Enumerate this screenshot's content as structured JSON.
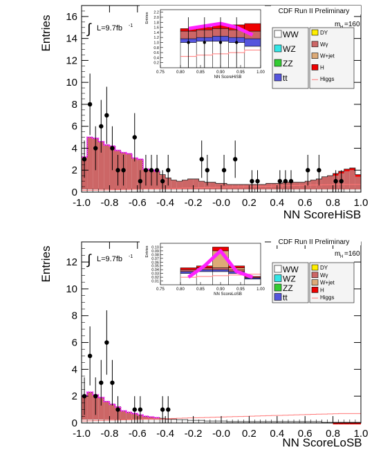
{
  "colors": {
    "WW": "#ffffff",
    "WZ": "#33e6e6",
    "ZZ": "#33cc33",
    "ttbar": "#5555dd",
    "DY": "#ffee00",
    "Wgamma": "#cc6666",
    "Wjet": "#ddaa77",
    "H": "#ee0000",
    "Higgs": "#ff7777",
    "band": "#ff22ff",
    "data": "#000000"
  },
  "chart_data": [
    {
      "type": "histogram",
      "id": "top",
      "run_label": "CDF Run II Preliminary",
      "lumi_label": "L=9.7fb",
      "lumi_sup": "-1",
      "mass_label": "m",
      "mass_sub": "H",
      "mass_value": "=160",
      "xlabel": "NN ScoreHiSB",
      "ylabel": "Entries",
      "xlim": [
        -1.0,
        1.0
      ],
      "ylim": [
        0,
        17
      ],
      "xticks": [
        -1.0,
        -0.8,
        -0.6,
        -0.4,
        -0.2,
        -0.0,
        0.2,
        0.4,
        0.6,
        0.8,
        1.0
      ],
      "xtick_labels": [
        "-1.0",
        "-0.8",
        "-0.6",
        "-0.4",
        "-0.2",
        "-0.0",
        "0.2",
        "0.4",
        "0.6",
        "0.8",
        "1.0"
      ],
      "yticks": [
        0,
        2,
        4,
        6,
        8,
        10,
        12,
        14,
        16
      ],
      "bin_edges": [
        -1.0,
        -0.96,
        -0.92,
        -0.88,
        -0.84,
        -0.8,
        -0.76,
        -0.72,
        -0.68,
        -0.64,
        -0.6,
        -0.56,
        -0.52,
        -0.48,
        -0.44,
        -0.4,
        -0.36,
        -0.32,
        -0.28,
        -0.24,
        -0.2,
        -0.16,
        -0.12,
        -0.08,
        -0.04,
        0.0,
        0.04,
        0.08,
        0.12,
        0.16,
        0.2,
        0.24,
        0.28,
        0.32,
        0.36,
        0.4,
        0.44,
        0.48,
        0.52,
        0.56,
        0.6,
        0.64,
        0.68,
        0.72,
        0.76,
        0.8,
        0.84,
        0.88,
        0.92,
        0.96,
        1.0
      ],
      "stack_total": [
        3.2,
        5.0,
        4.9,
        4.6,
        4.3,
        4.2,
        3.8,
        3.6,
        3.5,
        3.1,
        3.0,
        2.1,
        2.0,
        1.9,
        1.6,
        1.3,
        1.1,
        1.0,
        1.1,
        1.2,
        1.2,
        1.0,
        0.9,
        0.9,
        0.8,
        0.8,
        0.7,
        0.7,
        0.7,
        0.7,
        0.7,
        0.7,
        0.7,
        0.8,
        0.8,
        0.8,
        0.9,
        0.9,
        0.9,
        0.9,
        1.0,
        1.1,
        1.2,
        1.4,
        1.5,
        1.7,
        1.9,
        2.1,
        2.2,
        1.6
      ],
      "data_points": [
        {
          "x": -0.98,
          "y": 3,
          "err": 1.7
        },
        {
          "x": -0.94,
          "y": 8,
          "err": 2.8
        },
        {
          "x": -0.9,
          "y": 4,
          "err": 2.0
        },
        {
          "x": -0.86,
          "y": 6,
          "err": 2.4
        },
        {
          "x": -0.82,
          "y": 7,
          "err": 2.6
        },
        {
          "x": -0.78,
          "y": 4,
          "err": 2.0
        },
        {
          "x": -0.74,
          "y": 2,
          "err": 1.4
        },
        {
          "x": -0.7,
          "y": 2,
          "err": 1.4
        },
        {
          "x": -0.62,
          "y": 5,
          "err": 2.2
        },
        {
          "x": -0.58,
          "y": 1,
          "err": 1.0
        },
        {
          "x": -0.54,
          "y": 2,
          "err": 1.4
        },
        {
          "x": -0.5,
          "y": 2,
          "err": 1.4
        },
        {
          "x": -0.46,
          "y": 2,
          "err": 1.4
        },
        {
          "x": -0.42,
          "y": 1,
          "err": 1.0
        },
        {
          "x": -0.38,
          "y": 2,
          "err": 1.4
        },
        {
          "x": -0.14,
          "y": 3,
          "err": 1.7
        },
        {
          "x": -0.1,
          "y": 2,
          "err": 1.4
        },
        {
          "x": 0.02,
          "y": 2,
          "err": 1.4
        },
        {
          "x": 0.1,
          "y": 3,
          "err": 1.7
        },
        {
          "x": 0.22,
          "y": 1,
          "err": 1.0
        },
        {
          "x": 0.26,
          "y": 1,
          "err": 1.0
        },
        {
          "x": 0.42,
          "y": 1,
          "err": 1.0
        },
        {
          "x": 0.46,
          "y": 1,
          "err": 1.0
        },
        {
          "x": 0.5,
          "y": 1,
          "err": 1.0
        },
        {
          "x": 0.62,
          "y": 2,
          "err": 1.4
        },
        {
          "x": 0.7,
          "y": 2,
          "err": 1.4
        },
        {
          "x": 0.82,
          "y": 1,
          "err": 1.0
        },
        {
          "x": 0.86,
          "y": 1,
          "err": 1.0
        }
      ],
      "inset": {
        "xlabel": "NN ScoreHiSB",
        "ylabel": "Entries",
        "xlim": [
          0.75,
          1.0
        ],
        "ylim": [
          0,
          2.3
        ],
        "xticks": [
          0.75,
          0.8,
          0.85,
          0.9,
          0.95,
          1.0
        ],
        "xtick_labels": [
          "0.75",
          "0.80",
          "0.85",
          "0.90",
          "0.95",
          "1.00"
        ],
        "yticks": [
          0.2,
          0.4,
          0.6,
          0.8,
          1.0,
          1.2,
          1.4,
          1.6,
          1.8,
          2.0,
          2.2
        ],
        "ytick_labels": [
          "0.2",
          "0.4",
          "0.6",
          "0.8",
          "1.0",
          "1.2",
          "1.4",
          "1.6",
          "1.8",
          "2.0",
          "2.2"
        ],
        "bin_edges": [
          0.8,
          0.84,
          0.88,
          0.92,
          0.96,
          1.0
        ],
        "stacks": [
          {
            "name": "WW",
            "values": [
              1.0,
              1.05,
              1.05,
              1.0,
              0.85
            ]
          },
          {
            "name": "ttbar",
            "values": [
              0.15,
              0.15,
              0.2,
              0.2,
              0.3
            ]
          },
          {
            "name": "Wgamma",
            "values": [
              0.3,
              0.3,
              0.3,
              0.3,
              0.3
            ]
          },
          {
            "name": "H",
            "values": [
              0.1,
              0.1,
              0.15,
              0.2,
              0.3
            ]
          }
        ],
        "signal": [
          0.45,
          0.5,
          0.55,
          0.6,
          0.7
        ],
        "band": [
          1.55,
          1.65,
          1.75,
          1.6,
          1.3
        ],
        "data_points": [
          {
            "x": 0.82,
            "y": 1,
            "err": 1.0
          },
          {
            "x": 0.86,
            "y": 1,
            "err": 1.0
          },
          {
            "x": 0.9,
            "y": 1,
            "err": 1.0
          },
          {
            "x": 0.94,
            "y": 1,
            "err": 1.0
          }
        ]
      },
      "legend": [
        {
          "label": "WW",
          "key": "WW"
        },
        {
          "label": "WZ",
          "key": "WZ"
        },
        {
          "label": "ZZ",
          "key": "ZZ"
        },
        {
          "label": "tt",
          "key": "ttbar"
        },
        {
          "label": "DY",
          "key": "DY"
        },
        {
          "label": "Wγ",
          "key": "Wgamma"
        },
        {
          "label": "W+jet",
          "key": "Wjet"
        },
        {
          "label": "H",
          "key": "H"
        },
        {
          "label": "Higgs",
          "key": "Higgs"
        }
      ]
    },
    {
      "type": "histogram",
      "id": "bottom",
      "run_label": "CDF Run II Preliminary",
      "lumi_label": "L=9.7fb",
      "lumi_sup": "-1",
      "mass_label": "m",
      "mass_sub": "H",
      "mass_value": "=160",
      "xlabel": "NN ScoreLoSB",
      "ylabel": "Entries",
      "xlim": [
        -1.0,
        1.0
      ],
      "ylim": [
        0,
        13.5
      ],
      "xticks": [
        -1.0,
        -0.8,
        -0.6,
        -0.4,
        -0.2,
        -0.0,
        0.2,
        0.4,
        0.6,
        0.8,
        1.0
      ],
      "xtick_labels": [
        "-1.0",
        "-0.8",
        "-0.6",
        "-0.4",
        "-0.2",
        "-0.0",
        "0.2",
        "0.4",
        "0.6",
        "0.8",
        "1.0"
      ],
      "yticks": [
        0,
        2,
        4,
        6,
        8,
        10,
        12
      ],
      "bin_edges": [
        -1.0,
        -0.96,
        -0.92,
        -0.88,
        -0.84,
        -0.8,
        -0.76,
        -0.72,
        -0.68,
        -0.64,
        -0.6,
        -0.56,
        -0.52,
        -0.48,
        -0.44,
        -0.4,
        -0.36,
        -0.32,
        -0.28,
        -0.24,
        -0.2,
        -0.16,
        -0.12,
        -0.08,
        -0.04,
        0.0,
        0.04,
        0.08,
        0.12,
        0.16,
        0.2,
        0.24,
        0.28,
        0.32,
        0.36,
        0.4,
        0.44,
        0.48,
        0.52,
        0.56,
        0.6,
        0.64,
        0.68,
        0.72,
        0.76,
        0.8,
        0.84,
        0.88,
        0.92,
        0.96,
        1.0
      ],
      "stack_total": [
        2.0,
        2.3,
        2.1,
        1.9,
        1.6,
        1.4,
        1.2,
        0.9,
        0.8,
        0.7,
        0.6,
        0.5,
        0.45,
        0.4,
        0.35,
        0.3,
        0.3,
        0.25,
        0.25,
        0.2,
        0.2,
        0.2,
        0.15,
        0.15,
        0.15,
        0.15,
        0.1,
        0.1,
        0.1,
        0.1,
        0.1,
        0.1,
        0.1,
        0.1,
        0.1,
        0.1,
        0.1,
        0.1,
        0.1,
        0.1,
        0.1,
        0.1,
        0.1,
        0.05,
        0.05,
        0.05,
        0.05,
        0.05,
        0.05,
        0.05
      ],
      "data_points": [
        {
          "x": -0.98,
          "y": 2,
          "err": 1.4
        },
        {
          "x": -0.94,
          "y": 5,
          "err": 2.2
        },
        {
          "x": -0.9,
          "y": 2,
          "err": 1.4
        },
        {
          "x": -0.86,
          "y": 3,
          "err": 1.7
        },
        {
          "x": -0.82,
          "y": 6,
          "err": 2.4
        },
        {
          "x": -0.78,
          "y": 3,
          "err": 1.7
        },
        {
          "x": -0.74,
          "y": 1,
          "err": 1.0
        },
        {
          "x": -0.62,
          "y": 1,
          "err": 1.0
        },
        {
          "x": -0.58,
          "y": 1,
          "err": 1.0
        },
        {
          "x": -0.42,
          "y": 1,
          "err": 1.0
        },
        {
          "x": -0.38,
          "y": 1,
          "err": 1.0
        }
      ],
      "inset": {
        "xlabel": "NN ScoreLoSB",
        "ylabel": "Entries",
        "xlim": [
          0.75,
          1.0
        ],
        "ylim": [
          0,
          0.11
        ],
        "xticks": [
          0.75,
          0.8,
          0.85,
          0.9,
          0.95,
          1.0
        ],
        "xtick_labels": [
          "0.75",
          "0.80",
          "0.85",
          "0.90",
          "0.95",
          "1.00"
        ],
        "yticks": [
          0.01,
          0.02,
          0.03,
          0.04,
          0.05,
          0.06,
          0.07,
          0.08,
          0.09,
          0.1
        ],
        "ytick_labels": [
          "0.01",
          "0.02",
          "0.03",
          "0.04",
          "0.05",
          "0.06",
          "0.07",
          "0.08",
          "0.09",
          "0.10"
        ],
        "bin_edges": [
          0.8,
          0.84,
          0.88,
          0.92,
          0.96,
          1.0
        ],
        "stacks": [
          {
            "name": "WW",
            "values": [
              0.03,
              0.035,
              0.035,
              0.03,
              0.015
            ]
          },
          {
            "name": "ttbar",
            "values": [
              0.005,
              0.005,
              0.005,
              0.005,
              0.003
            ]
          },
          {
            "name": "Wgamma",
            "values": [
              0.005,
              0.005,
              0.005,
              0.005,
              0.002
            ]
          },
          {
            "name": "Wjet",
            "values": [
              0.0,
              0.0,
              0.045,
              0.005,
              0.0
            ]
          },
          {
            "name": "H",
            "values": [
              0.005,
              0.005,
              0.01,
              0.005,
              0.002
            ]
          }
        ],
        "signal": [
          0.02,
          0.022,
          0.024,
          0.026,
          0.028
        ],
        "band": [
          0.02,
          0.05,
          0.09,
          0.035,
          0.02
        ],
        "data_points": []
      },
      "legend": [
        {
          "label": "WW",
          "key": "WW"
        },
        {
          "label": "WZ",
          "key": "WZ"
        },
        {
          "label": "ZZ",
          "key": "ZZ"
        },
        {
          "label": "tt",
          "key": "ttbar"
        },
        {
          "label": "DY",
          "key": "DY"
        },
        {
          "label": "Wγ",
          "key": "Wgamma"
        },
        {
          "label": "W+jet",
          "key": "Wjet"
        },
        {
          "label": "H",
          "key": "H"
        },
        {
          "label": "Higgs",
          "key": "Higgs"
        }
      ]
    }
  ]
}
